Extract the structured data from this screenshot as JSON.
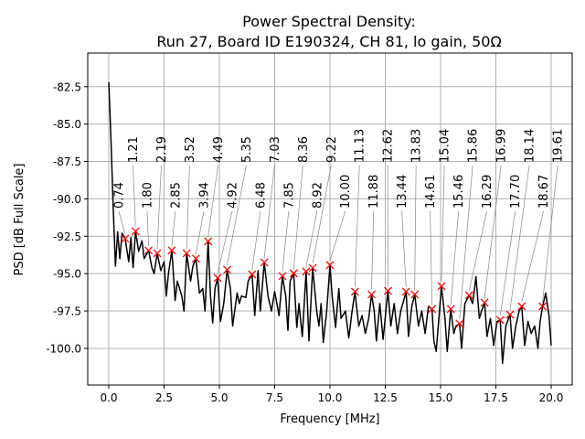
{
  "chart_data": {
    "type": "line",
    "title": "Power Spectral Density:",
    "subtitle": "Run 27, Board ID E190324, CH 81, lo gain, 50Ω",
    "xlabel": "Frequency [MHz]",
    "ylabel": "PSD [dB Full Scale]",
    "xlim": [
      -0.95,
      20.95
    ],
    "ylim": [
      -102.45,
      -80.25
    ],
    "grid": true,
    "line_color": "#000000",
    "marker_color": "#ff0000",
    "xticks": [
      "0.0",
      "2.5",
      "5.0",
      "7.5",
      "10.0",
      "12.5",
      "15.0",
      "17.5",
      "20.0"
    ],
    "yticks": [
      "-82.5",
      "-85.0",
      "-87.5",
      "-90.0",
      "-92.5",
      "-95.0",
      "-97.5",
      "-100.0"
    ],
    "series": [
      {
        "x": [
          0.0,
          0.1,
          0.2,
          0.3,
          0.4,
          0.5,
          0.6,
          0.74,
          0.9,
          1.0,
          1.1,
          1.21,
          1.35,
          1.5,
          1.6,
          1.8,
          1.95,
          2.05,
          2.19,
          2.35,
          2.5,
          2.6,
          2.7,
          2.85,
          3.0,
          3.1,
          3.3,
          3.4,
          3.52,
          3.7,
          3.8,
          3.94,
          4.1,
          4.25,
          4.35,
          4.49,
          4.6,
          4.7,
          4.8,
          4.92,
          5.05,
          5.2,
          5.35,
          5.5,
          5.6,
          5.8,
          5.9,
          6.0,
          6.2,
          6.3,
          6.48,
          6.6,
          6.75,
          6.85,
          7.03,
          7.2,
          7.35,
          7.5,
          7.7,
          7.85,
          8.0,
          8.1,
          8.2,
          8.36,
          8.5,
          8.6,
          8.75,
          8.92,
          9.05,
          9.22,
          9.4,
          9.5,
          9.6,
          9.7,
          9.85,
          10.0,
          10.1,
          10.25,
          10.4,
          10.5,
          10.7,
          10.85,
          11.0,
          11.13,
          11.3,
          11.45,
          11.6,
          11.75,
          11.88,
          12.0,
          12.1,
          12.25,
          12.4,
          12.62,
          12.75,
          12.9,
          13.05,
          13.2,
          13.44,
          13.55,
          13.7,
          13.83,
          14.0,
          14.15,
          14.3,
          14.45,
          14.61,
          14.7,
          14.8,
          14.95,
          15.04,
          15.2,
          15.3,
          15.46,
          15.6,
          15.7,
          15.86,
          15.95,
          16.1,
          16.29,
          16.45,
          16.6,
          16.75,
          16.85,
          16.99,
          17.1,
          17.25,
          17.4,
          17.55,
          17.7,
          17.8,
          17.95,
          18.14,
          18.25,
          18.4,
          18.55,
          18.67,
          18.8,
          18.95,
          19.1,
          19.25,
          19.4,
          19.5,
          19.61,
          19.75,
          19.9,
          20.0
        ],
        "y": [
          -82.2,
          -86,
          -90.5,
          -94.5,
          -92.2,
          -94.0,
          -92.3,
          -92.66,
          -94.2,
          -92.6,
          -94.6,
          -92.17,
          -93.5,
          -92.8,
          -94.0,
          -93.45,
          -94.6,
          -95.0,
          -93.64,
          -94.8,
          -94.2,
          -96.5,
          -95.0,
          -93.45,
          -96.8,
          -95.5,
          -96.5,
          -97.5,
          -93.64,
          -95.5,
          -94.5,
          -94.0,
          -96.3,
          -96.0,
          -97.5,
          -92.84,
          -96.5,
          -98.3,
          -96.0,
          -95.29,
          -98.2,
          -97.0,
          -94.74,
          -96.0,
          -98.5,
          -96.3,
          -97.0,
          -96.5,
          -96.6,
          -95.5,
          -95.05,
          -97.8,
          -94.8,
          -97.5,
          -94.25,
          -96.5,
          -97.5,
          -96.2,
          -97.8,
          -95.17,
          -96.5,
          -98.8,
          -95.5,
          -94.98,
          -98.6,
          -97.0,
          -99.2,
          -94.86,
          -99.5,
          -94.62,
          -97.5,
          -98.5,
          -97.0,
          -99.6,
          -97.5,
          -94.43,
          -96.5,
          -98.6,
          -96.0,
          -98.0,
          -97.5,
          -99.3,
          -97.5,
          -96.21,
          -98.5,
          -97.8,
          -99.0,
          -98.0,
          -96.39,
          -97.5,
          -99.5,
          -97.0,
          -99.4,
          -96.15,
          -98.5,
          -97.0,
          -99.0,
          -97.5,
          -96.21,
          -99.2,
          -97.2,
          -96.39,
          -98.5,
          -97.5,
          -99.0,
          -97.2,
          -97.37,
          -99.5,
          -100.2,
          -97.5,
          -95.84,
          -98.0,
          -100.2,
          -97.37,
          -99.0,
          -98.5,
          -98.35,
          -100.0,
          -97.0,
          -96.45,
          -97.0,
          -95.2,
          -98.0,
          -97.5,
          -96.94,
          -99.2,
          -98.0,
          -99.8,
          -98.2,
          -98.1,
          -101.0,
          -98.5,
          -97.74,
          -100.0,
          -98.5,
          -97.5,
          -97.19,
          -99.8,
          -98.2,
          -99.0,
          -98.5,
          -100.0,
          -98.2,
          -97.19,
          -96.3,
          -97.8,
          -99.8
        ]
      }
    ],
    "peaks": [
      {
        "x": 0.74,
        "y": -92.66,
        "label": "0.74"
      },
      {
        "x": 1.21,
        "y": -92.17,
        "label": "1.21"
      },
      {
        "x": 1.8,
        "y": -93.45,
        "label": "1.80"
      },
      {
        "x": 2.19,
        "y": -93.64,
        "label": "2.19"
      },
      {
        "x": 2.85,
        "y": -93.45,
        "label": "2.85"
      },
      {
        "x": 3.52,
        "y": -93.64,
        "label": "3.52"
      },
      {
        "x": 3.94,
        "y": -94.0,
        "label": "3.94"
      },
      {
        "x": 4.49,
        "y": -92.84,
        "label": "4.49"
      },
      {
        "x": 4.92,
        "y": -95.29,
        "label": "4.92"
      },
      {
        "x": 5.35,
        "y": -94.74,
        "label": "5.35"
      },
      {
        "x": 6.48,
        "y": -95.05,
        "label": "6.48"
      },
      {
        "x": 7.03,
        "y": -94.25,
        "label": "7.03"
      },
      {
        "x": 7.85,
        "y": -95.17,
        "label": "7.85"
      },
      {
        "x": 8.36,
        "y": -94.98,
        "label": "8.36"
      },
      {
        "x": 8.92,
        "y": -94.86,
        "label": "8.92"
      },
      {
        "x": 9.22,
        "y": -94.62,
        "label": "9.22"
      },
      {
        "x": 10.0,
        "y": -94.43,
        "label": "10.00"
      },
      {
        "x": 11.13,
        "y": -96.21,
        "label": "11.13"
      },
      {
        "x": 11.88,
        "y": -96.39,
        "label": "11.88"
      },
      {
        "x": 12.62,
        "y": -96.15,
        "label": "12.62"
      },
      {
        "x": 13.44,
        "y": -96.21,
        "label": "13.44"
      },
      {
        "x": 13.83,
        "y": -96.39,
        "label": "13.83"
      },
      {
        "x": 14.61,
        "y": -97.37,
        "label": "14.61"
      },
      {
        "x": 15.04,
        "y": -95.84,
        "label": "15.04"
      },
      {
        "x": 15.46,
        "y": -97.37,
        "label": "15.46"
      },
      {
        "x": 15.86,
        "y": -98.35,
        "label": "15.86"
      },
      {
        "x": 16.29,
        "y": -96.45,
        "label": "16.29"
      },
      {
        "x": 16.99,
        "y": -96.94,
        "label": "16.99"
      },
      {
        "x": 17.7,
        "y": -98.1,
        "label": "17.70"
      },
      {
        "x": 18.14,
        "y": -97.74,
        "label": "18.14"
      },
      {
        "x": 18.67,
        "y": -97.19,
        "label": "18.67"
      },
      {
        "x": 19.61,
        "y": -97.19,
        "label": "19.61"
      }
    ]
  }
}
